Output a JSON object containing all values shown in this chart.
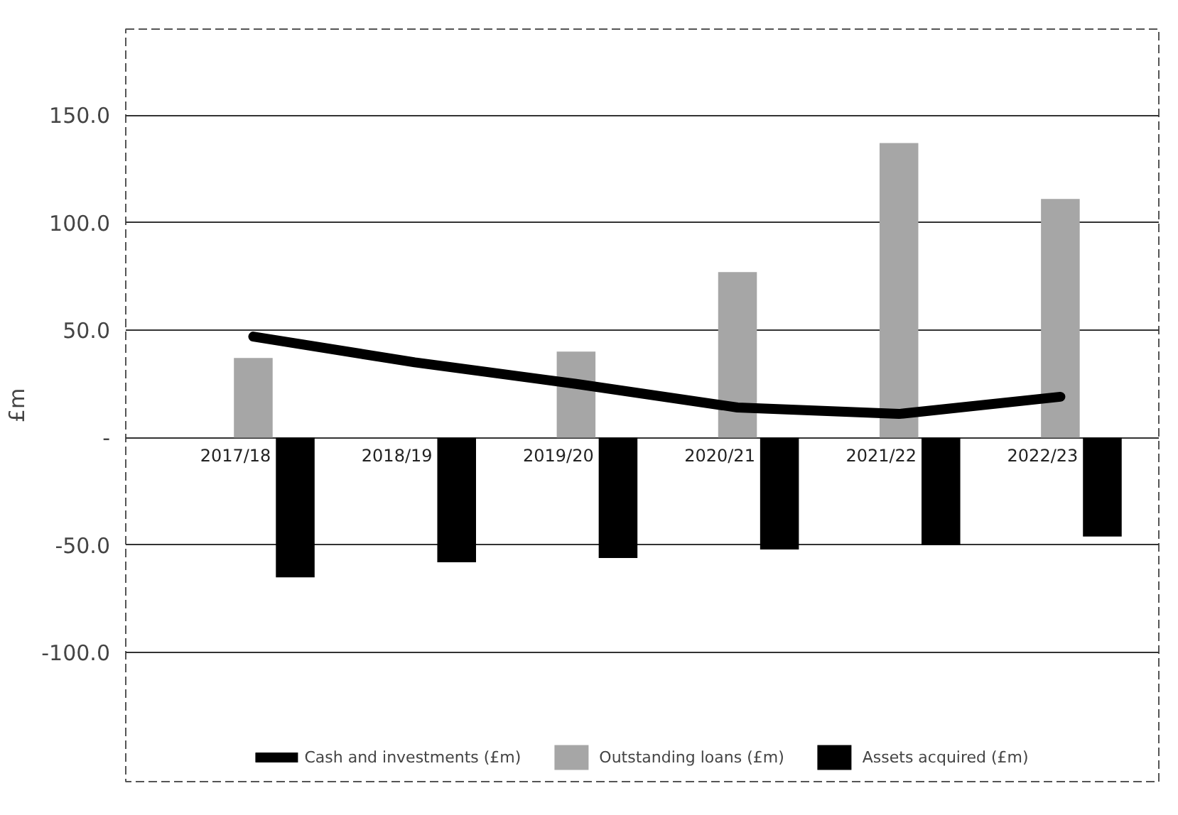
{
  "chart_data": {
    "type": "bar",
    "ylabel": "£m",
    "categories": [
      "2017/18",
      "2018/19",
      "2019/20",
      "2020/21",
      "2021/22",
      "2022/23"
    ],
    "series": [
      {
        "name": "Cash and investments (£m)",
        "type": "line",
        "color": "#000000",
        "values": [
          47,
          35,
          25,
          14,
          11,
          19
        ]
      },
      {
        "name": "Outstanding loans (£m)",
        "color": "#a6a6a6",
        "values": [
          37,
          null,
          40,
          77,
          137,
          111
        ]
      },
      {
        "name": "Assets acquired (£m)",
        "color": "#000000",
        "values": [
          -65,
          -58,
          -56,
          -52,
          -50,
          -46
        ]
      }
    ],
    "ylim": [
      -160,
      190
    ],
    "yticks": [
      {
        "value": -100,
        "label": "-100.0"
      },
      {
        "value": -50,
        "label": "-50.0"
      },
      {
        "value": 0,
        "label": "-"
      },
      {
        "value": 50,
        "label": "50.0"
      },
      {
        "value": 100,
        "label": "100.0"
      },
      {
        "value": 150,
        "label": "150.0"
      }
    ],
    "grid": "y",
    "legend": "bottom",
    "line_style": "solid",
    "marker": "none"
  }
}
